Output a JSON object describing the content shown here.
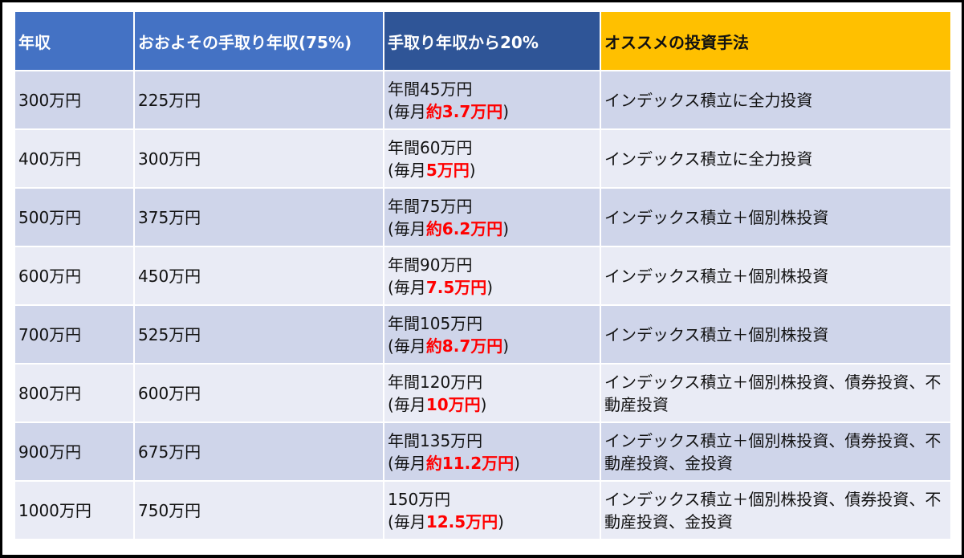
{
  "table": {
    "headers": [
      "年収",
      "おおよその手取り年収(75%)",
      "手取り年収から20%",
      "オススメの投資手法"
    ],
    "header_colors": [
      "#4472c4",
      "#4472c4",
      "#2f5597",
      "#ffc000"
    ],
    "rows": [
      {
        "income": "300万円",
        "takehome": "225万円",
        "annual": "年間45万円",
        "monthly_prefix": "(毎月",
        "monthly": "約3.7万円",
        "monthly_suffix": ")",
        "method": "インデックス積立に全力投資"
      },
      {
        "income": "400万円",
        "takehome": "300万円",
        "annual": "年間60万円",
        "monthly_prefix": "(毎月",
        "monthly": "5万円",
        "monthly_suffix": ")",
        "method": "インデックス積立に全力投資"
      },
      {
        "income": "500万円",
        "takehome": "375万円",
        "annual": "年間75万円",
        "monthly_prefix": "(毎月",
        "monthly": "約6.2万円",
        "monthly_suffix": ")",
        "method": "インデックス積立＋個別株投資"
      },
      {
        "income": "600万円",
        "takehome": "450万円",
        "annual": "年間90万円",
        "monthly_prefix": "(毎月",
        "monthly": "7.5万円",
        "monthly_suffix": ")",
        "method": "インデックス積立＋個別株投資"
      },
      {
        "income": "700万円",
        "takehome": "525万円",
        "annual": "年間105万円",
        "monthly_prefix": "(毎月",
        "monthly": "約8.7万円",
        "monthly_suffix": ")",
        "method": "インデックス積立＋個別株投資"
      },
      {
        "income": "800万円",
        "takehome": "600万円",
        "annual": "年間120万円",
        "monthly_prefix": "(毎月",
        "monthly": "10万円",
        "monthly_suffix": ")",
        "method": "インデックス積立＋個別株投資、債券投資、不動産投資"
      },
      {
        "income": "900万円",
        "takehome": "675万円",
        "annual": "年間135万円",
        "monthly_prefix": "(毎月",
        "monthly": "約11.2万円",
        "monthly_suffix": ")",
        "method": "インデックス積立＋個別株投資、債券投資、不動産投資、金投資"
      },
      {
        "income": "1000万円",
        "takehome": "750万円",
        "annual": "150万円",
        "monthly_prefix": "(毎月",
        "monthly": "12.5万円",
        "monthly_suffix": ")",
        "method": "インデックス積立＋個別株投資、債券投資、不動産投資、金投資"
      }
    ],
    "colors": {
      "odd_row": "#cfd5ea",
      "even_row": "#e9ebf5",
      "highlight": "#ff0000"
    }
  }
}
